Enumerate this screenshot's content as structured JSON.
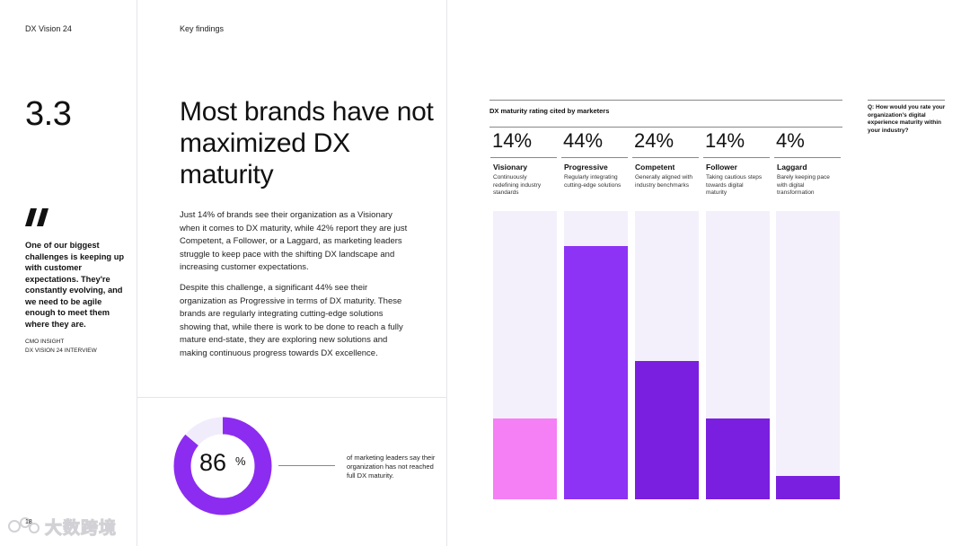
{
  "header": {
    "left": "DX Vision 24",
    "section": "Key findings"
  },
  "section_number": "3.3",
  "quote": {
    "text": "One of our biggest challenges is keeping up with customer expectations. They're constantly evolving, and we need to be agile enough to meet them where they are.",
    "source_line1": "CMO INSIGHT",
    "source_line2": "DX VISION 24 INTERVIEW"
  },
  "headline": "Most brands have not maximized DX maturity",
  "body": {
    "p1": "Just 14% of brands see their organization as a Visionary when it comes to DX maturity, while 42% report they are just Competent, a Follower, or a Laggard, as marketing leaders struggle to keep pace with the shifting DX landscape and increasing customer expectations.",
    "p2": "Despite this challenge, a significant 44% see their organization as Progressive in terms of DX maturity. These brands are regularly integrating cutting-edge solutions showing that, while there is work to be done to reach a fully mature end-state, they are exploring new solutions and making continuous progress towards DX excellence."
  },
  "stat": {
    "value": "86",
    "unit": "%",
    "fraction": 0.86,
    "caption": "of marketing leaders say their organization has not reached full DX maturity.",
    "ring_color": "#8c2cf0",
    "ring_bg": "#f1ecfb"
  },
  "question": "Q: How would you rate your organization's digital experience maturity within your industry?",
  "page_number": "18",
  "watermark_text": "大数跨境",
  "chart_data": {
    "type": "bar",
    "title": "DX maturity rating cited by marketers",
    "categories": [
      "Visionary",
      "Progressive",
      "Competent",
      "Follower",
      "Laggard"
    ],
    "values": [
      14,
      44,
      24,
      14,
      4
    ],
    "value_labels": [
      "14%",
      "44%",
      "24%",
      "14%",
      "4%"
    ],
    "descriptions": [
      "Continuously redefining industry standards",
      "Regularly integrating cutting-edge solutions",
      "Generally aligned with industry benchmarks",
      "Taking cautious steps towards digital maturity",
      "Barely keeping pace with digital transformation"
    ],
    "colors": [
      "#f57ff5",
      "#8d33f5",
      "#7a1fe0",
      "#7a1fe0",
      "#7a1fe0"
    ],
    "ylim": [
      0,
      50
    ],
    "track_color": "#f3f0fb"
  }
}
